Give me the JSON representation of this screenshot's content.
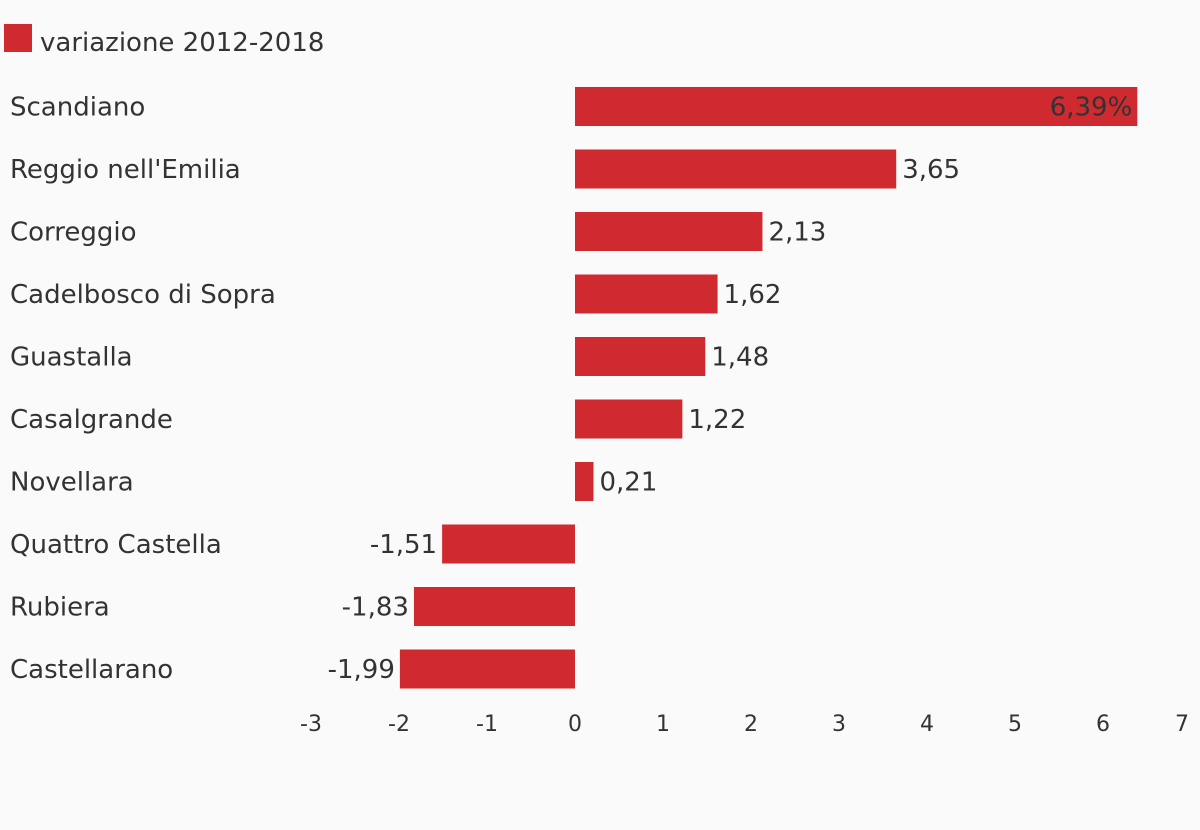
{
  "chart_data": {
    "type": "bar",
    "orientation": "horizontal",
    "categories": [
      "Scandiano",
      "Reggio nell'Emilia",
      "Correggio",
      "Cadelbosco di Sopra",
      "Guastalla",
      "Casalgrande",
      "Novellara",
      "Quattro Castella",
      "Rubiera",
      "Castellarano"
    ],
    "series": [
      {
        "name": "variazione 2012-2018",
        "values": [
          6.39,
          3.65,
          2.13,
          1.62,
          1.48,
          1.22,
          0.21,
          -1.51,
          -1.83,
          -1.99
        ],
        "labels": [
          "6,39%",
          "3,65",
          "2,13",
          "1,62",
          "1,48",
          "1,22",
          "0,21",
          "-1,51",
          "-1,83",
          "-1,99"
        ]
      }
    ],
    "xlim": [
      -3,
      7
    ],
    "xticks": [
      "-3",
      "-2",
      "-1",
      "0",
      "1",
      "2",
      "3",
      "4",
      "5",
      "6",
      "7"
    ],
    "legend_position": "top-left",
    "grid": false
  },
  "colors": {
    "bar": "#ce2a30",
    "text": "#333333",
    "background": "#fafafa"
  }
}
